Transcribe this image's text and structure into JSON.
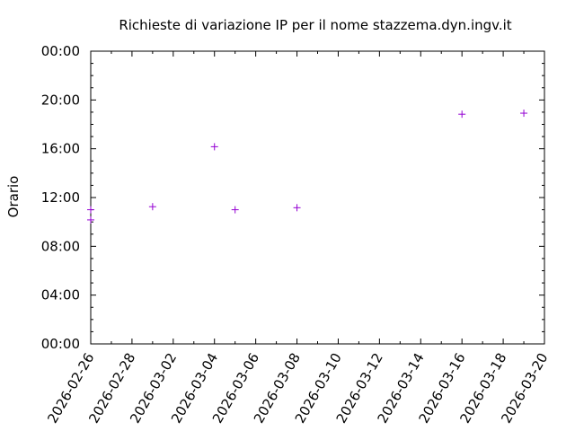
{
  "chart_data": {
    "type": "scatter",
    "title": "Richieste di variazione IP per il nome stazzema.dyn.ingv.it",
    "xlabel": "",
    "ylabel": "Orario",
    "xlim": [
      "2026-02-26",
      "2026-03-20"
    ],
    "ylim": [
      "00:00",
      "24:00"
    ],
    "x_ticks": [
      "2026-02-26",
      "2026-02-28",
      "2026-03-02",
      "2026-03-04",
      "2026-03-06",
      "2026-03-08",
      "2026-03-10",
      "2026-03-12",
      "2026-03-14",
      "2026-03-16",
      "2026-03-18",
      "2026-03-20"
    ],
    "y_ticks": [
      "00:00",
      "04:00",
      "08:00",
      "12:00",
      "16:00",
      "20:00",
      "00:00"
    ],
    "grid": false,
    "marker": "+",
    "marker_color": "#9400d3",
    "series": [
      {
        "points": [
          {
            "x": "2026-02-26",
            "y": "11:00"
          },
          {
            "x": "2026-02-26",
            "y": "10:10"
          },
          {
            "x": "2026-03-01",
            "y": "11:15"
          },
          {
            "x": "2026-03-04",
            "y": "16:10"
          },
          {
            "x": "2026-03-05",
            "y": "11:00"
          },
          {
            "x": "2026-03-08",
            "y": "11:10"
          },
          {
            "x": "2026-03-16",
            "y": "18:50"
          },
          {
            "x": "2026-03-19",
            "y": "18:55"
          }
        ]
      }
    ]
  }
}
